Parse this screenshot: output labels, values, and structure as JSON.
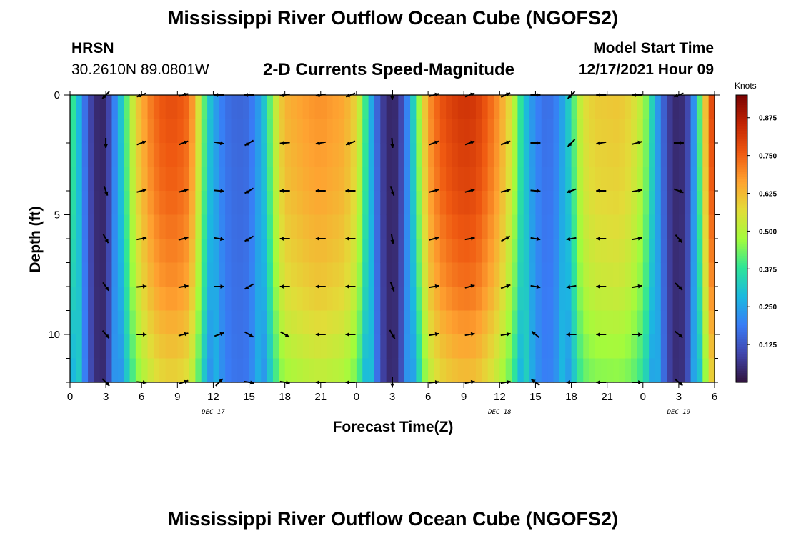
{
  "header": {
    "title": "Mississippi River Outflow Ocean Cube (NGOFS2)",
    "station": "HRSN",
    "coords": "30.2610N  89.0801W",
    "subtitle": "2-D Currents Speed-Magnitude",
    "model_start_label": "Model Start Time",
    "model_start_value": "12/17/2021 Hour 09"
  },
  "footer": {
    "title": "Mississippi River Outflow Ocean Cube (NGOFS2)"
  },
  "chart_data": {
    "type": "heatmap",
    "title": "2-D Currents Speed-Magnitude",
    "xlabel": "Forecast Time(Z)",
    "ylabel": "Depth (ft)",
    "x_tick_labels": [
      "0",
      "3",
      "6",
      "9",
      "12",
      "15",
      "18",
      "21",
      "0",
      "3",
      "6",
      "9",
      "12",
      "15",
      "18",
      "21",
      "0",
      "3",
      "6"
    ],
    "xlim_hours": [
      0,
      54
    ],
    "ylim_ft": [
      0,
      12
    ],
    "y_ticks": [
      0,
      5,
      10
    ],
    "y_tick_labels": [
      "0",
      "5",
      "10"
    ],
    "day_labels": [
      {
        "text": "DEC 17",
        "hour": 12
      },
      {
        "text": "DEC 18",
        "hour": 36
      },
      {
        "text": "DEC 19",
        "hour": 51
      }
    ],
    "colorbar": {
      "units": "Knots",
      "range": [
        0,
        0.95
      ],
      "ticks": [
        0.125,
        0.25,
        0.375,
        0.5,
        0.625,
        0.75,
        0.875
      ],
      "tick_labels": [
        "0.125",
        "0.250",
        "0.375",
        "0.500",
        "0.625",
        "0.750",
        "0.875"
      ]
    },
    "speed_profile_surface": [
      {
        "h": 0,
        "v": 0.42
      },
      {
        "h": 0.5,
        "v": 0.34
      },
      {
        "h": 1,
        "v": 0.22
      },
      {
        "h": 1.5,
        "v": 0.12
      },
      {
        "h": 2,
        "v": 0.06
      },
      {
        "h": 2.5,
        "v": 0.03
      },
      {
        "h": 3,
        "v": 0.05
      },
      {
        "h": 3.5,
        "v": 0.14
      },
      {
        "h": 4,
        "v": 0.26
      },
      {
        "h": 4.5,
        "v": 0.36
      },
      {
        "h": 5,
        "v": 0.48
      },
      {
        "h": 5.5,
        "v": 0.58
      },
      {
        "h": 6,
        "v": 0.65
      },
      {
        "h": 7,
        "v": 0.74
      },
      {
        "h": 8,
        "v": 0.78
      },
      {
        "h": 9,
        "v": 0.78
      },
      {
        "h": 10,
        "v": 0.74
      },
      {
        "h": 10.5,
        "v": 0.63
      },
      {
        "h": 11,
        "v": 0.48
      },
      {
        "h": 11.5,
        "v": 0.35
      },
      {
        "h": 12,
        "v": 0.26
      },
      {
        "h": 13,
        "v": 0.17
      },
      {
        "h": 14,
        "v": 0.15
      },
      {
        "h": 15,
        "v": 0.16
      },
      {
        "h": 16,
        "v": 0.26
      },
      {
        "h": 16.5,
        "v": 0.36
      },
      {
        "h": 17,
        "v": 0.48
      },
      {
        "h": 17.5,
        "v": 0.58
      },
      {
        "h": 18,
        "v": 0.64
      },
      {
        "h": 20,
        "v": 0.68
      },
      {
        "h": 21,
        "v": 0.69
      },
      {
        "h": 23,
        "v": 0.66
      },
      {
        "h": 24,
        "v": 0.58
      },
      {
        "h": 24.5,
        "v": 0.46
      },
      {
        "h": 25,
        "v": 0.32
      },
      {
        "h": 25.5,
        "v": 0.2
      },
      {
        "h": 26,
        "v": 0.1
      },
      {
        "h": 26.5,
        "v": 0.05
      },
      {
        "h": 27,
        "v": 0.03
      },
      {
        "h": 27.5,
        "v": 0.06
      },
      {
        "h": 28,
        "v": 0.14
      },
      {
        "h": 28.5,
        "v": 0.26
      },
      {
        "h": 29,
        "v": 0.4
      },
      {
        "h": 29.5,
        "v": 0.54
      },
      {
        "h": 30,
        "v": 0.68
      },
      {
        "h": 31,
        "v": 0.77
      },
      {
        "h": 32,
        "v": 0.81
      },
      {
        "h": 33,
        "v": 0.83
      },
      {
        "h": 34,
        "v": 0.82
      },
      {
        "h": 35,
        "v": 0.76
      },
      {
        "h": 36,
        "v": 0.68
      },
      {
        "h": 37,
        "v": 0.55
      },
      {
        "h": 37.5,
        "v": 0.44
      },
      {
        "h": 38,
        "v": 0.32
      },
      {
        "h": 39,
        "v": 0.2
      },
      {
        "h": 40,
        "v": 0.16
      },
      {
        "h": 41,
        "v": 0.21
      },
      {
        "h": 42,
        "v": 0.36
      },
      {
        "h": 42.5,
        "v": 0.48
      },
      {
        "h": 43,
        "v": 0.56
      },
      {
        "h": 44,
        "v": 0.6
      },
      {
        "h": 46,
        "v": 0.61
      },
      {
        "h": 47,
        "v": 0.58
      },
      {
        "h": 48,
        "v": 0.5
      },
      {
        "h": 48.5,
        "v": 0.4
      },
      {
        "h": 49,
        "v": 0.28
      },
      {
        "h": 49.5,
        "v": 0.18
      },
      {
        "h": 50,
        "v": 0.1
      },
      {
        "h": 50.5,
        "v": 0.05
      },
      {
        "h": 51,
        "v": 0.04
      },
      {
        "h": 51.5,
        "v": 0.06
      },
      {
        "h": 52,
        "v": 0.14
      },
      {
        "h": 52.5,
        "v": 0.3
      },
      {
        "h": 53,
        "v": 0.52
      },
      {
        "h": 53.5,
        "v": 0.72
      },
      {
        "h": 54,
        "v": 0.85
      }
    ],
    "depth_attenuation": [
      {
        "d": 0,
        "f": 1.0
      },
      {
        "d": 4,
        "f": 0.96
      },
      {
        "d": 8,
        "f": 0.88
      },
      {
        "d": 12,
        "f": 0.74
      }
    ],
    "arrow_depths_ft": [
      0,
      2,
      4,
      6,
      8,
      10,
      12
    ],
    "arrows": [
      {
        "hour": 3,
        "dirs_deg": [
          225,
          270,
          290,
          300,
          305,
          310,
          315
        ]
      },
      {
        "hour": 6,
        "dirs_deg": [
          200,
          20,
          15,
          10,
          5,
          0,
          355
        ]
      },
      {
        "hour": 9.5,
        "dirs_deg": [
          15,
          20,
          15,
          15,
          10,
          15,
          20
        ]
      },
      {
        "hour": 12.5,
        "dirs_deg": [
          180,
          350,
          355,
          350,
          0,
          20,
          45
        ]
      },
      {
        "hour": 15,
        "dirs_deg": [
          180,
          210,
          210,
          210,
          210,
          330,
          350
        ]
      },
      {
        "hour": 18,
        "dirs_deg": [
          190,
          185,
          180,
          180,
          180,
          330,
          350
        ]
      },
      {
        "hour": 21,
        "dirs_deg": [
          190,
          190,
          180,
          180,
          180,
          180,
          180
        ]
      },
      {
        "hour": 23.5,
        "dirs_deg": [
          200,
          200,
          180,
          180,
          180,
          180,
          180
        ]
      },
      {
        "hour": 27,
        "dirs_deg": [
          270,
          275,
          290,
          280,
          290,
          300,
          270
        ]
      },
      {
        "hour": 30.5,
        "dirs_deg": [
          15,
          20,
          15,
          15,
          10,
          10,
          5
        ]
      },
      {
        "hour": 33.5,
        "dirs_deg": [
          20,
          20,
          15,
          10,
          15,
          10,
          10
        ]
      },
      {
        "hour": 36.5,
        "dirs_deg": [
          25,
          20,
          15,
          30,
          20,
          10,
          10
        ]
      },
      {
        "hour": 39,
        "dirs_deg": [
          0,
          0,
          355,
          350,
          350,
          140,
          145
        ]
      },
      {
        "hour": 42,
        "dirs_deg": [
          225,
          225,
          200,
          190,
          190,
          180,
          180
        ]
      },
      {
        "hour": 44.5,
        "dirs_deg": [
          180,
          190,
          180,
          180,
          180,
          180,
          180
        ]
      },
      {
        "hour": 47.5,
        "dirs_deg": [
          180,
          15,
          10,
          10,
          10,
          0,
          0
        ]
      },
      {
        "hour": 51,
        "dirs_deg": [
          200,
          0,
          340,
          310,
          315,
          320,
          320
        ]
      }
    ]
  }
}
